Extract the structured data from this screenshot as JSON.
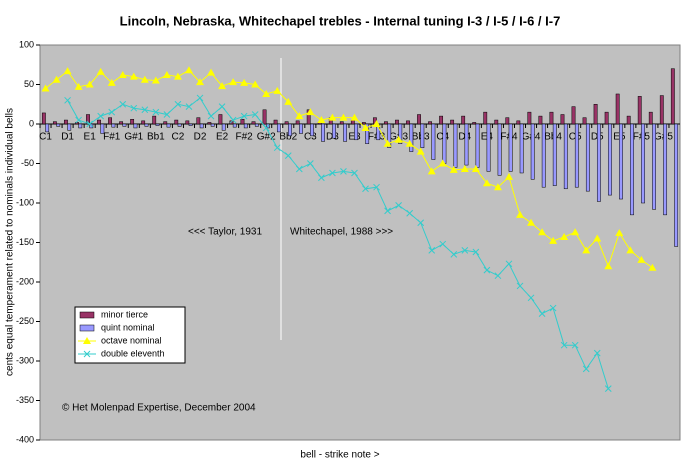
{
  "chart_data": {
    "type": "combo",
    "title": "Lincoln, Nebraska, Whitechapel trebles - Internal tuning I-3 / I-5 / I-6 / I-7",
    "x_axis_label": "bell - strike note >",
    "y_axis_label": "cents equal temperament related to nominals individual bells",
    "annotations": [
      "<<< Taylor, 1931",
      "Whitechapel, 1988 >>>",
      "© Het Molenpad Expertise, December 2004"
    ],
    "categories": [
      "C1",
      null,
      "D1",
      null,
      "E1",
      null,
      "F#1",
      null,
      "G#1",
      null,
      "Bb1",
      null,
      "C2",
      null,
      "D2",
      null,
      "E2",
      null,
      "F#2",
      null,
      "G#2",
      null,
      "Bb2",
      null,
      "C3",
      null,
      "D3",
      null,
      "E3",
      null,
      "F#3",
      null,
      "G#3",
      null,
      "Bb3",
      null,
      "C4",
      null,
      "D4",
      null,
      "E4",
      null,
      "F#4",
      null,
      "G#4",
      null,
      "Bb4",
      null,
      "C5",
      null,
      "D5",
      null,
      "E5",
      null,
      "F#5",
      null,
      "G#5",
      null
    ],
    "ylim": [
      -400,
      100
    ],
    "yticks": [
      100,
      50,
      0,
      -50,
      -100,
      -150,
      -200,
      -250,
      -300,
      -350,
      -400
    ],
    "legend_position": "lower-left",
    "series": [
      {
        "name": "minor tierce",
        "type": "bar",
        "color": "#993366",
        "values": [
          14,
          3,
          5,
          2,
          12,
          5,
          8,
          3,
          6,
          4,
          10,
          3,
          5,
          4,
          8,
          2,
          12,
          4,
          6,
          3,
          18,
          5,
          3,
          4,
          18,
          2,
          8,
          3,
          5,
          2,
          8,
          3,
          5,
          4,
          12,
          3,
          10,
          5,
          10,
          2,
          15,
          5,
          8,
          4,
          15,
          10,
          15,
          12,
          22,
          8,
          25,
          15,
          38,
          10,
          35,
          15,
          36,
          70
        ]
      },
      {
        "name": "quint nominal",
        "type": "bar",
        "color": "#9999ff",
        "values": [
          -10,
          -3,
          -8,
          -5,
          -5,
          -12,
          -4,
          -3,
          -5,
          -3,
          -2,
          -4,
          -3,
          -2,
          -5,
          -3,
          -8,
          -4,
          -5,
          -3,
          -5,
          -10,
          -15,
          -12,
          -15,
          -22,
          -18,
          -22,
          -20,
          -25,
          -20,
          -30,
          -25,
          -35,
          -30,
          -45,
          -50,
          -55,
          -52,
          -55,
          -60,
          -65,
          -60,
          -62,
          -70,
          -80,
          -78,
          -82,
          -80,
          -85,
          -98,
          -90,
          -95,
          -115,
          -100,
          -108,
          -115,
          -155
        ]
      },
      {
        "name": "octave nominal",
        "type": "line",
        "marker": "triangle",
        "color": "#ffff00",
        "values": [
          45,
          56,
          67,
          47,
          50,
          66,
          52,
          62,
          60,
          56,
          55,
          62,
          60,
          68,
          53,
          65,
          48,
          53,
          52,
          50,
          38,
          42,
          28,
          10,
          15,
          5,
          8,
          8,
          8,
          -5,
          0,
          -25,
          -20,
          -25,
          -35,
          -60,
          -50,
          -58,
          -57,
          -57,
          -75,
          -80,
          -67,
          -115,
          -125,
          -137,
          -148,
          -143,
          -137,
          -160,
          -145,
          -180,
          -138,
          -160,
          -172,
          -182,
          null,
          null
        ]
      },
      {
        "name": "double eleventh",
        "type": "line",
        "marker": "x",
        "color": "#33cccc",
        "values": [
          null,
          null,
          30,
          5,
          0,
          10,
          15,
          25,
          20,
          18,
          15,
          12,
          25,
          22,
          33,
          10,
          22,
          5,
          10,
          12,
          -5,
          -30,
          -40,
          -57,
          -50,
          -68,
          -62,
          -60,
          -62,
          -82,
          -80,
          -110,
          -103,
          -113,
          -125,
          -160,
          -152,
          -165,
          -160,
          -162,
          -185,
          -192,
          -177,
          -205,
          -220,
          -240,
          -233,
          -280,
          -280,
          -310,
          -290,
          -335,
          null,
          null,
          null,
          null,
          null,
          null
        ]
      }
    ]
  }
}
